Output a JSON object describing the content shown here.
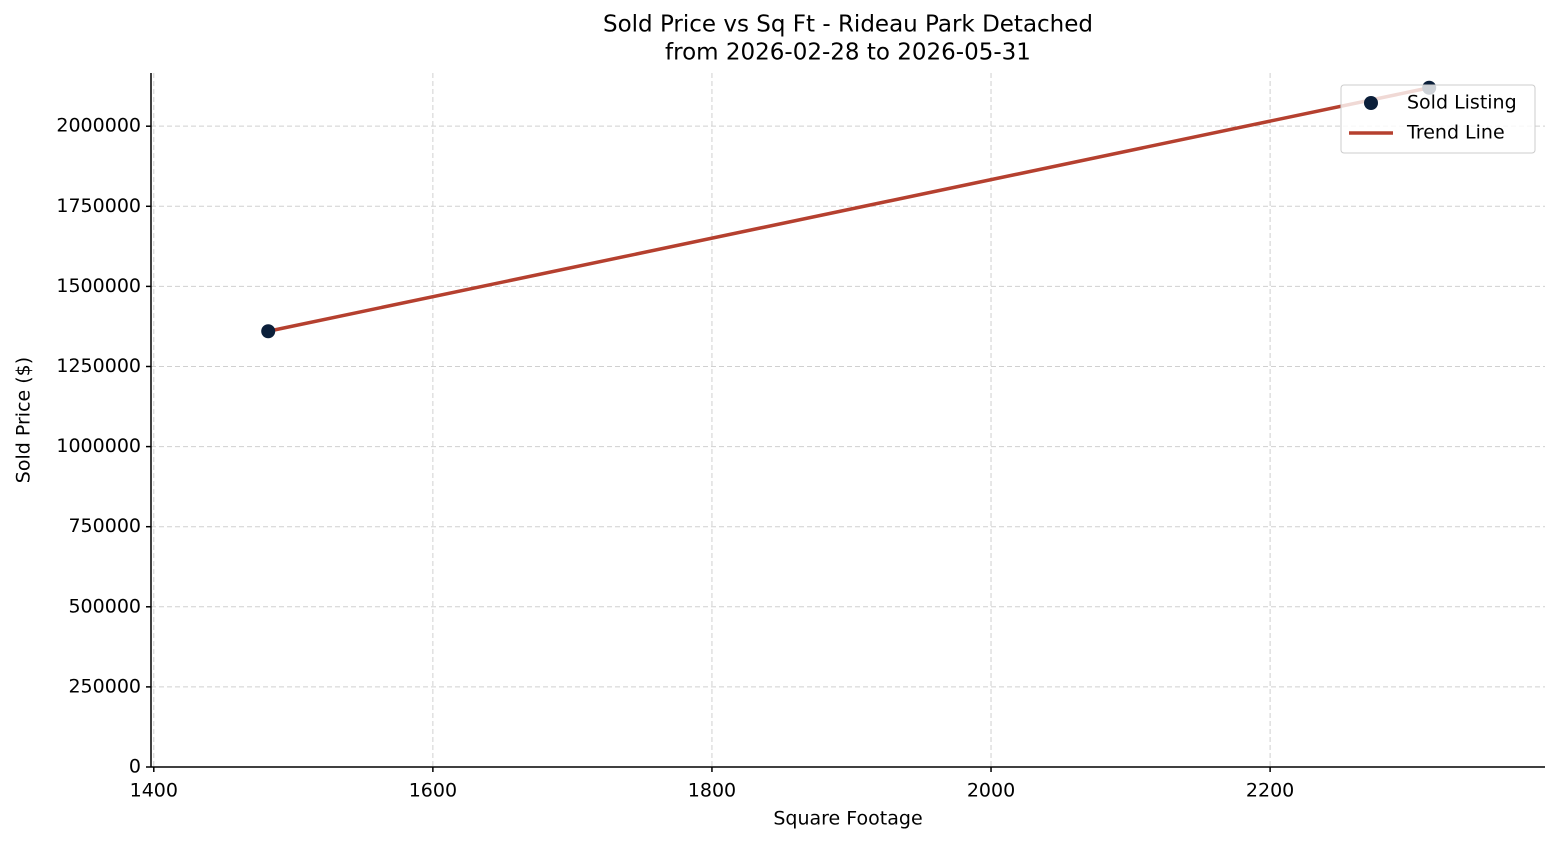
{
  "chart_data": {
    "type": "scatter",
    "title": "Sold Price vs Sq Ft - Rideau Park Detached",
    "subtitle": "from 2026-02-28 to 2026-05-31",
    "x_label": "Square Footage",
    "y_label": "Sold Price ($)",
    "series": [
      {
        "name": "Sold Listing",
        "type": "scatter",
        "color": "#0b1f3a",
        "x": [
          1482,
          2314
        ],
        "values": [
          1360000,
          2120000
        ]
      },
      {
        "name": "Trend Line",
        "type": "line",
        "color": "#b5402f",
        "x": [
          1482,
          2314
        ],
        "values": [
          1360000,
          2120000
        ]
      }
    ],
    "xlim": [
      1398,
      2397
    ],
    "ylim": [
      0,
      2166000
    ],
    "xticks": [
      1400,
      1600,
      1800,
      2000,
      2200
    ],
    "yticks": [
      0,
      250000,
      500000,
      750000,
      1000000,
      1250000,
      1500000,
      1750000,
      2000000
    ],
    "grid": true,
    "legend_position": "upper-right"
  }
}
